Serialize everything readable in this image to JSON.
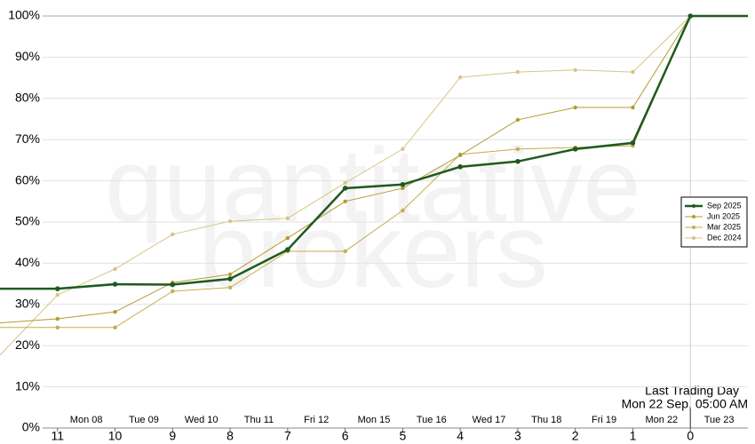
{
  "chart_data": {
    "type": "line",
    "watermark_top": "quantitative",
    "watermark_bottom": "brokers",
    "annotation_title": "Last Trading Day",
    "annotation_time": "Mon 22 Sep, 05:00 AM",
    "x": [
      12,
      11,
      10,
      9,
      8,
      7,
      6,
      5,
      4,
      3,
      2,
      1,
      0,
      -1
    ],
    "xlim": [
      12,
      -1
    ],
    "xticks": [
      11,
      10,
      9,
      8,
      7,
      6,
      5,
      4,
      3,
      2,
      1,
      0
    ],
    "date_ticks": [
      {
        "value": 10.5,
        "label": "Mon 08"
      },
      {
        "value": 9.5,
        "label": "Tue 09"
      },
      {
        "value": 8.5,
        "label": "Wed 10"
      },
      {
        "value": 7.5,
        "label": "Thu 11"
      },
      {
        "value": 6.5,
        "label": "Fri 12"
      },
      {
        "value": 5.5,
        "label": "Mon 15"
      },
      {
        "value": 4.5,
        "label": "Tue 16"
      },
      {
        "value": 3.5,
        "label": "Wed 17"
      },
      {
        "value": 2.5,
        "label": "Thu 18"
      },
      {
        "value": 1.5,
        "label": "Fri 19"
      },
      {
        "value": 0.5,
        "label": "Mon 22"
      },
      {
        "value": -0.5,
        "label": "Tue 23"
      }
    ],
    "ylim": [
      0,
      100
    ],
    "yticks": [
      {
        "value": 0,
        "label": "0%"
      },
      {
        "value": 10,
        "label": "10%"
      },
      {
        "value": 20,
        "label": "20%"
      },
      {
        "value": 30,
        "label": "30%"
      },
      {
        "value": 40,
        "label": "40%"
      },
      {
        "value": 50,
        "label": "50%"
      },
      {
        "value": 60,
        "label": "60%"
      },
      {
        "value": 70,
        "label": "70%"
      },
      {
        "value": 80,
        "label": "80%"
      },
      {
        "value": 90,
        "label": "90%"
      },
      {
        "value": 100,
        "label": "100%"
      }
    ],
    "grid": true,
    "legend": "right",
    "series": [
      {
        "name": "Sep 2025",
        "color": "#1e5a1e",
        "width": 2.5,
        "values": [
          33.8,
          33.8,
          34.9,
          34.8,
          36.2,
          43.3,
          58.2,
          59.1,
          63.4,
          64.7,
          67.7,
          69.2,
          100,
          100
        ]
      },
      {
        "name": "Jun 2025",
        "color": "#b49b30",
        "width": 1,
        "values": [
          25.5,
          26.5,
          28.2,
          35.3,
          37.3,
          46.1,
          55.0,
          58.2,
          66.2,
          74.8,
          77.8,
          77.8,
          100,
          100
        ]
      },
      {
        "name": "Mar 2025",
        "color": "#c4ad4c",
        "width": 1,
        "values": [
          24.4,
          24.4,
          24.4,
          33.2,
          34.1,
          42.9,
          42.9,
          52.8,
          66.4,
          67.7,
          68.1,
          68.5,
          100,
          100
        ]
      },
      {
        "name": "Dec 2024",
        "color": "#d6c686",
        "width": 1,
        "values": [
          17.7,
          32.3,
          38.6,
          47.0,
          50.2,
          50.9,
          59.5,
          67.7,
          85.1,
          86.4,
          86.9,
          86.4,
          100,
          100
        ]
      }
    ]
  }
}
